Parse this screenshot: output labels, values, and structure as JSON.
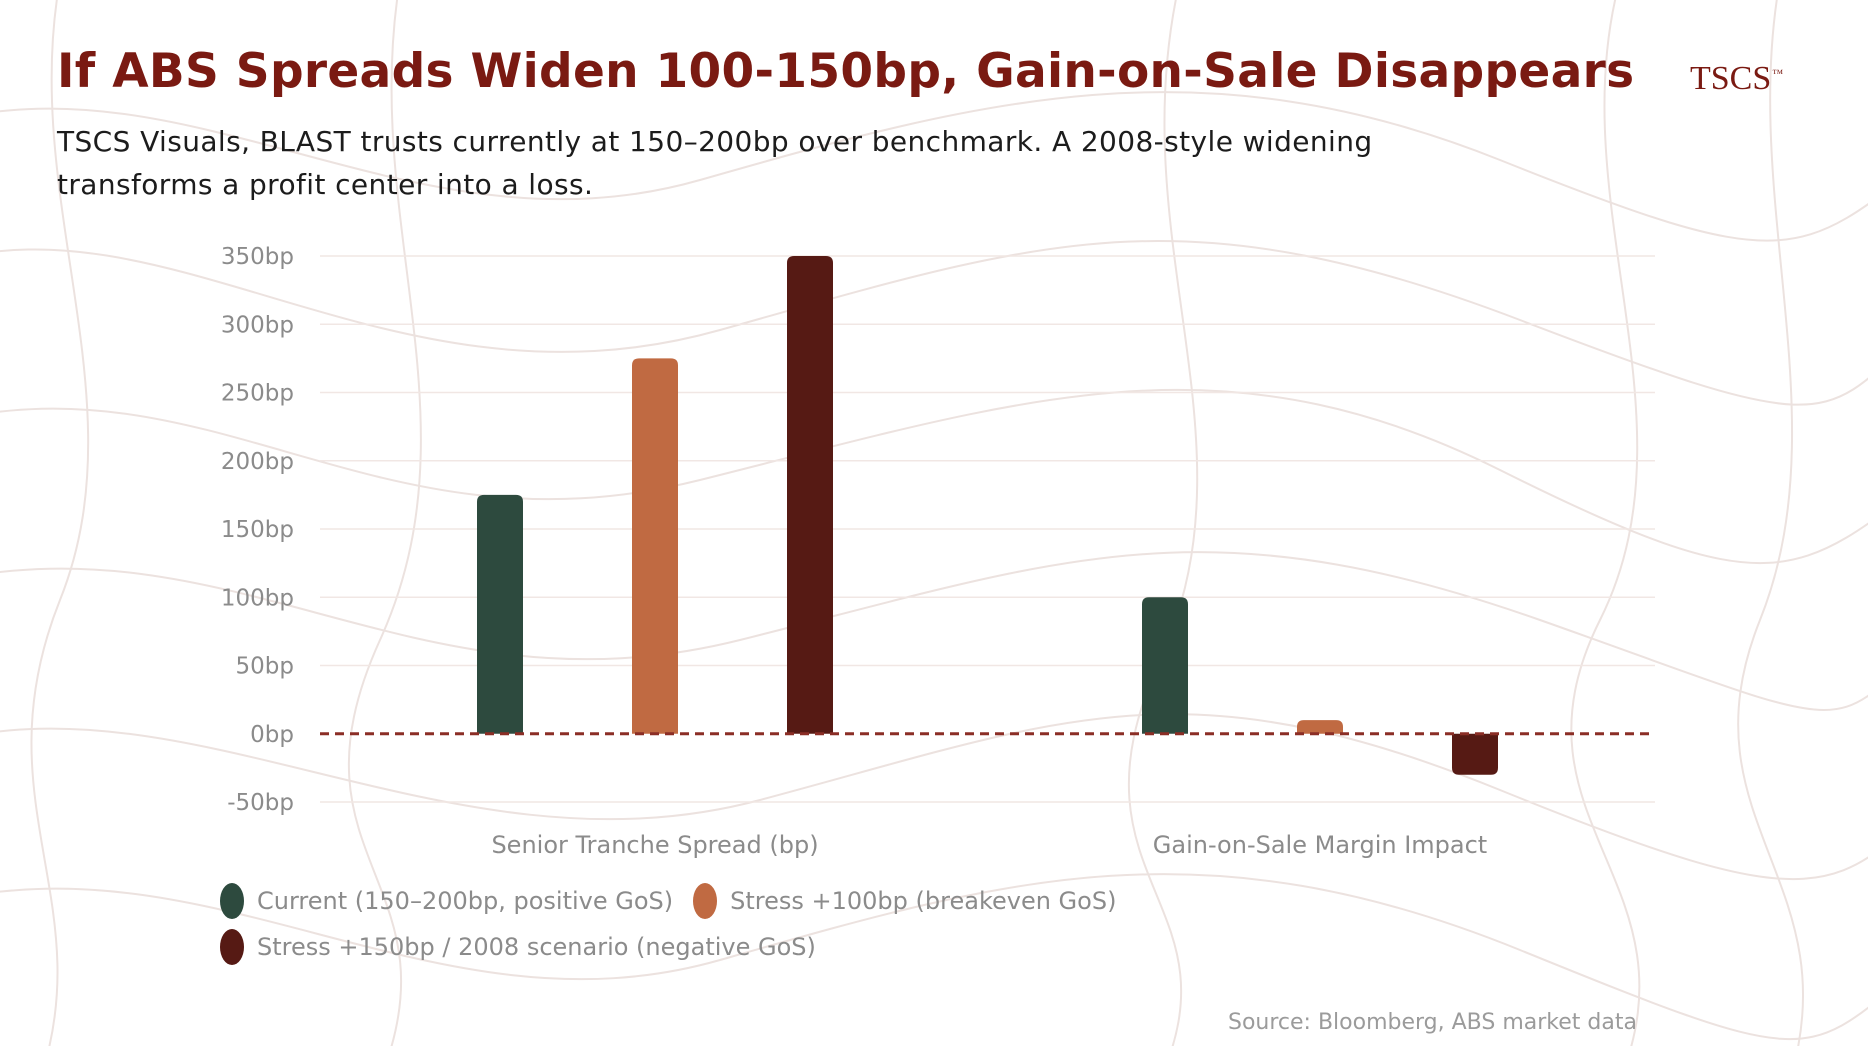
{
  "header": {
    "title": "If ABS Spreads Widen 100-150bp, Gain-on-Sale Disappears",
    "subtitle": "TSCS Visuals, BLAST trusts currently at 150–200bp over benchmark. A 2008-style widening transforms a profit center into a loss.",
    "logo": "TSCS",
    "logo_mark": "™"
  },
  "source": "Source: Bloomberg, ABS market data",
  "colors": {
    "title": "#7a1a12",
    "current": "#2d4a3e",
    "stress100": "#c06a42",
    "stress150": "#561a14",
    "zero_line": "#8b2e26",
    "grid": "#f1e7e4"
  },
  "chart_data": {
    "type": "bar",
    "categories": [
      "Senior Tranche Spread (bp)",
      "Gain-on-Sale Margin Impact"
    ],
    "series": [
      {
        "name": "Current (150–200bp, positive GoS)",
        "color_key": "current",
        "values": [
          175,
          100
        ]
      },
      {
        "name": "Stress +100bp (breakeven GoS)",
        "color_key": "stress100",
        "values": [
          275,
          10
        ]
      },
      {
        "name": "Stress +150bp / 2008 scenario (negative GoS)",
        "color_key": "stress150",
        "values": [
          350,
          -30
        ]
      }
    ],
    "ylim": [
      -50,
      350
    ],
    "yticks": [
      -50,
      0,
      50,
      100,
      150,
      200,
      250,
      300,
      350
    ],
    "ytick_labels": [
      "-50bp",
      "0bp",
      "50bp",
      "100bp",
      "150bp",
      "200bp",
      "250bp",
      "300bp",
      "350bp"
    ],
    "title": "If ABS Spreads Widen 100-150bp, Gain-on-Sale Disappears",
    "xlabel": "",
    "ylabel": "",
    "zero_line": "dashed",
    "legend_position": "bottom-left"
  }
}
